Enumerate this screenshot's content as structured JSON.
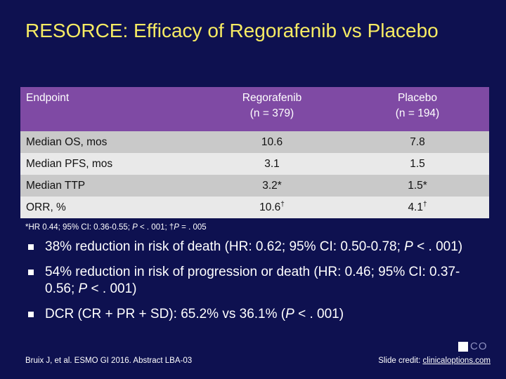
{
  "title": "RESORCE: Efficacy of Regorafenib vs Placebo",
  "table": {
    "headers": [
      {
        "line1": "Endpoint",
        "line2": ""
      },
      {
        "line1": "Regorafenib",
        "line2": "(n = 379)"
      },
      {
        "line1": "Placebo",
        "line2": "(n = 194)"
      }
    ],
    "rows": [
      {
        "endpoint": "Median OS, mos",
        "regorafenib": "10.6",
        "regorafenib_mark": "",
        "placebo": "7.8",
        "placebo_mark": ""
      },
      {
        "endpoint": "Median PFS, mos",
        "regorafenib": "3.1",
        "regorafenib_mark": "",
        "placebo": "1.5",
        "placebo_mark": ""
      },
      {
        "endpoint": "Median TTP",
        "regorafenib": "3.2*",
        "regorafenib_mark": "",
        "placebo": "1.5*",
        "placebo_mark": ""
      },
      {
        "endpoint": "ORR, %",
        "regorafenib": "10.6",
        "regorafenib_mark": "†",
        "placebo": "4.1",
        "placebo_mark": "†"
      }
    ]
  },
  "footnote": {
    "a": "*HR 0.44; 95% CI: 0.36-0.55; ",
    "p1": "P",
    "b": " < . 001; †",
    "p2": "P",
    "c": " = . 005"
  },
  "bullets": [
    {
      "pre": "38% reduction in risk of death (HR: 0.62; 95% CI: 0.50-0.78; ",
      "p": "P",
      "post": " < . 001)"
    },
    {
      "pre": "54% reduction in risk of progression or death (HR: 0.46; 95% CI: 0.37-0.56; ",
      "p": "P",
      "post": " < . 001)"
    },
    {
      "pre": "DCR (CR + PR + SD): 65.2% vs 36.1% (",
      "p": "P",
      "post": " < . 001)"
    }
  ],
  "citation": "Bruix J, et al. ESMO GI 2016. Abstract LBA-03",
  "credit": {
    "label": "Slide credit: ",
    "link": "clinicaloptions.com"
  },
  "logo_text": "CO",
  "colors": {
    "background": "#0e1150",
    "title": "#f6eb63",
    "header": "#7f4aa4",
    "row_dark": "#c9c9c9",
    "row_light": "#e9e9e9"
  }
}
